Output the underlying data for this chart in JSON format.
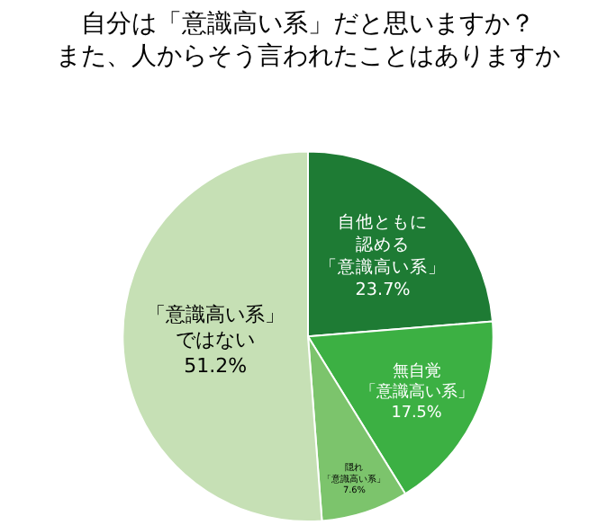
{
  "chart_data": {
    "type": "pie",
    "title": "自分は「意識高い系」だと思いますか？また、人からそう言われたことはありますか",
    "categories": [
      "自他ともに認める「意識高い系」",
      "無自覚「意識高い系」",
      "隠れ「意識高い系」",
      "「意識高い系」ではない"
    ],
    "values": [
      23.7,
      17.5,
      7.6,
      51.2
    ],
    "value_labels": [
      "23.7%",
      "17.5%",
      "7.6%",
      "51.2%"
    ],
    "colors": [
      "#1e7b34",
      "#3cb043",
      "#7cc46c",
      "#c6e0b5"
    ],
    "legend": false
  }
}
